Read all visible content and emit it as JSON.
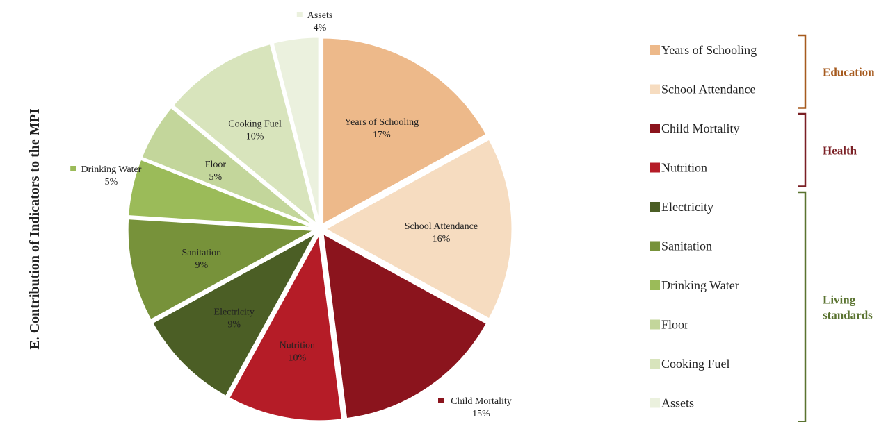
{
  "chart_data": {
    "type": "pie",
    "title": "E. Contribution of Indicators to the MPI",
    "slices": [
      {
        "label": "Years of Schooling",
        "value": 17,
        "value_label": "17%",
        "color": "#EDB98A"
      },
      {
        "label": "School Attendance",
        "value": 16,
        "value_label": "16%",
        "color": "#F6DCC0"
      },
      {
        "label": "Child Mortality",
        "value": 15,
        "value_label": "15%",
        "color": "#8B141D"
      },
      {
        "label": "Nutrition",
        "value": 10,
        "value_label": "10%",
        "color": "#B51C27"
      },
      {
        "label": "Electricity",
        "value": 9,
        "value_label": "9%",
        "color": "#4B5E25"
      },
      {
        "label": "Sanitation",
        "value": 9,
        "value_label": "9%",
        "color": "#77923A"
      },
      {
        "label": "Drinking Water",
        "value": 5,
        "value_label": "5%",
        "color": "#9BBB59"
      },
      {
        "label": "Floor",
        "value": 5,
        "value_label": "5%",
        "color": "#C3D69B"
      },
      {
        "label": "Cooking Fuel",
        "value": 10,
        "value_label": "10%",
        "color": "#D8E4BC"
      },
      {
        "label": "Assets",
        "value": 4,
        "value_label": "4%",
        "color": "#EBF1DE"
      }
    ],
    "legend": {
      "placement": "right",
      "groups": [
        {
          "name": "Education",
          "color": "#A65A1E",
          "items": [
            "Years of Schooling",
            "School Attendance"
          ]
        },
        {
          "name": "Health",
          "color": "#7A1F24",
          "items": [
            "Child Mortality",
            "Nutrition"
          ]
        },
        {
          "name": "Living standards",
          "color": "#5A7330",
          "items": [
            "Electricity",
            "Sanitation",
            "Drinking Water",
            "Floor",
            "Cooking Fuel",
            "Assets"
          ]
        }
      ]
    }
  }
}
